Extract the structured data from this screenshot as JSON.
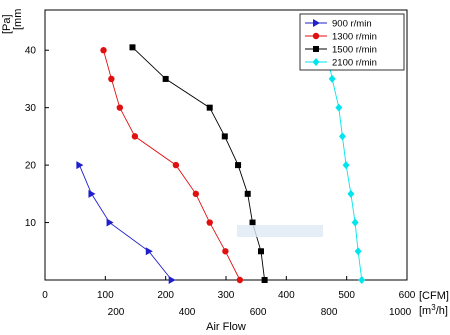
{
  "chart_data": {
    "type": "line",
    "xlabel": "Air Flow",
    "ylabel_lines": [
      "[Pa]",
      "[mm"
    ],
    "x_top_unit": "[CFM]",
    "x_bottom_unit": "[m3/h]",
    "x_cfm_range": [
      0,
      600
    ],
    "x_cfm_ticks": [
      0,
      100,
      200,
      300,
      400,
      500,
      600
    ],
    "x_m3h_ticks": [
      200,
      400,
      600,
      800,
      1000
    ],
    "y_mm_range": [
      0,
      47
    ],
    "y_mm_ticks": [
      10,
      20,
      30,
      40
    ],
    "legend_position": "top-right",
    "series": [
      {
        "name": "900 r/min",
        "color": "#1f1fcc",
        "marker": "triangle",
        "points": [
          [
            210,
            0
          ],
          [
            172,
            5
          ],
          [
            107,
            10
          ],
          [
            77,
            15
          ],
          [
            57,
            20
          ]
        ]
      },
      {
        "name": "1300 r/min",
        "color": "#e01010",
        "marker": "circle",
        "points": [
          [
            323,
            0
          ],
          [
            299,
            5
          ],
          [
            273,
            10
          ],
          [
            250,
            15
          ],
          [
            217,
            20
          ],
          [
            149,
            25
          ],
          [
            124,
            30
          ],
          [
            110,
            35
          ],
          [
            97,
            40
          ]
        ]
      },
      {
        "name": "1500 r/min",
        "color": "#000000",
        "marker": "square",
        "points": [
          [
            364,
            0
          ],
          [
            358,
            5
          ],
          [
            344,
            10
          ],
          [
            336,
            15
          ],
          [
            320,
            20
          ],
          [
            298,
            25
          ],
          [
            273,
            30
          ],
          [
            200,
            35
          ],
          [
            145,
            40.5
          ]
        ]
      },
      {
        "name": "2100 r/min",
        "color": "#00e5ee",
        "marker": "diamond",
        "points": [
          [
            525,
            0
          ],
          [
            519,
            5
          ],
          [
            514,
            10
          ],
          [
            507,
            15
          ],
          [
            499,
            20
          ],
          [
            493,
            25
          ],
          [
            487,
            30
          ],
          [
            476,
            35
          ],
          [
            465,
            40.5
          ]
        ]
      }
    ]
  }
}
